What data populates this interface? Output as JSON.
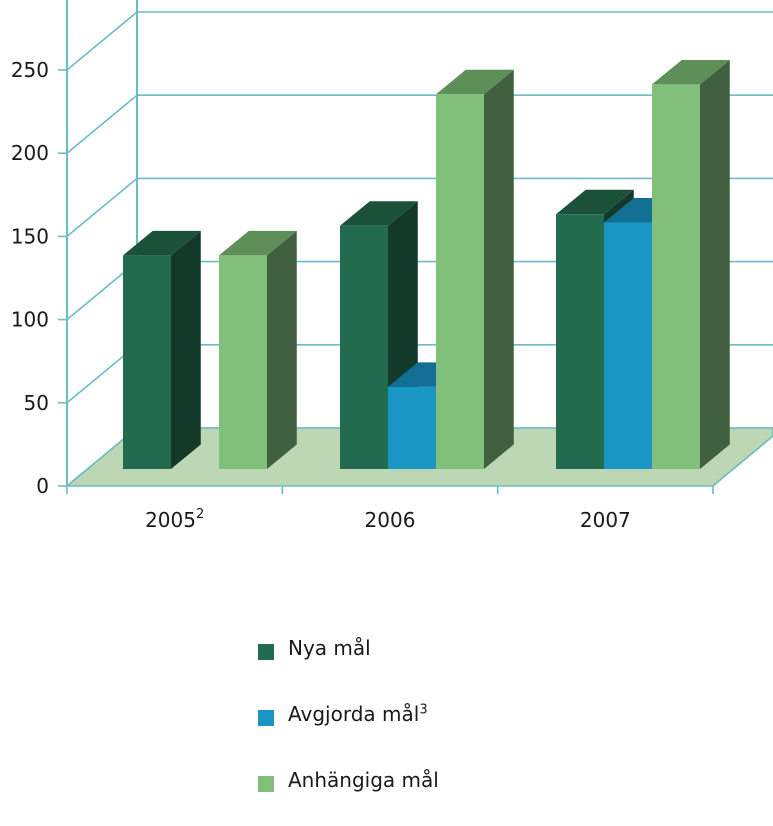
{
  "chart_data": {
    "type": "bar",
    "style": "3d-clustered-column",
    "categories": [
      "2005",
      "2006",
      "2007"
    ],
    "category_superscripts": [
      "2",
      "",
      ""
    ],
    "series": [
      {
        "name": "Nya mål",
        "superscript": "",
        "values": [
          130,
          148,
          155
        ],
        "color": "#236b4e",
        "side_color": "#13392a",
        "top_color": "#1a5138"
      },
      {
        "name": "Avgjorda mål",
        "superscript": "3",
        "values": [
          null,
          50,
          150
        ],
        "color": "#1a96c4",
        "side_color": "#12668a",
        "top_color": "#136e94"
      },
      {
        "name": "Anhängiga mål",
        "superscript": "",
        "values": [
          130,
          228,
          234
        ],
        "color": "#80c07a",
        "side_color": "#41603f",
        "top_color": "#5f8f58"
      }
    ],
    "y_ticks": [
      "0",
      "50",
      "100",
      "150",
      "200",
      "250"
    ],
    "ylim": [
      0,
      250
    ],
    "grid": true,
    "legend_position": "bottom",
    "title": "",
    "xlabel": "",
    "ylabel": "",
    "colors": {
      "grid": "#6bbcc4",
      "floor": "#bdd6b4",
      "floor_edge": "#6bbcc4"
    }
  }
}
